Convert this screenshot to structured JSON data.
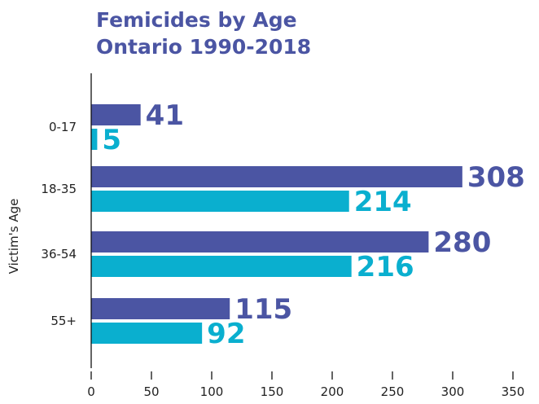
{
  "chart_data": {
    "type": "bar",
    "orientation": "horizontal",
    "title": [
      "Femicides by Age",
      "Ontario 1990-2018"
    ],
    "xlabel": "",
    "ylabel": "Victim's Age",
    "categories": [
      "0-17",
      "18-35",
      "36-54",
      "55+"
    ],
    "series": [
      {
        "values": [
          41,
          308,
          280,
          115
        ],
        "color": "#4b55a3"
      },
      {
        "values": [
          5,
          214,
          216,
          92
        ],
        "color": "#0aafcf"
      }
    ],
    "xlim": [
      0,
      350
    ],
    "xticks": [
      0,
      50,
      100,
      150,
      200,
      250,
      300,
      350
    ],
    "grid": false,
    "legend": "none"
  }
}
